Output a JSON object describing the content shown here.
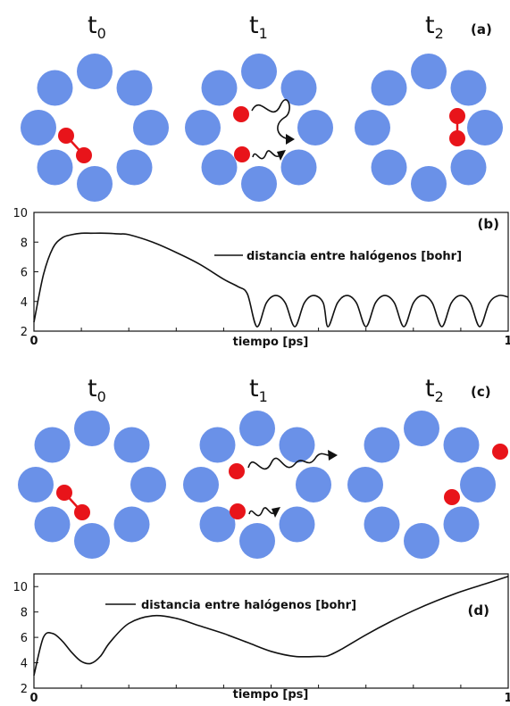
{
  "colors": {
    "solvent": "#6a91e8",
    "halogen": "#e8141a",
    "halogen_bond": "#e8141a",
    "curve": "#111111"
  },
  "top_scheme": {
    "panel_label": "(a)",
    "times": [
      {
        "base": "t",
        "sub": "0"
      },
      {
        "base": "t",
        "sub": "1"
      },
      {
        "base": "t",
        "sub": "2"
      }
    ]
  },
  "bottom_scheme": {
    "panel_label": "(c)",
    "times": [
      {
        "base": "t",
        "sub": "0"
      },
      {
        "base": "t",
        "sub": "1"
      },
      {
        "base": "t",
        "sub": "2"
      }
    ]
  },
  "chart_data": [
    {
      "panel_label": "(b)",
      "type": "line",
      "xlabel": "tiempo [ps]",
      "ylabel": "",
      "xlim": [
        0,
        1
      ],
      "ylim": [
        2,
        10
      ],
      "x_ticks": [
        "0",
        "1"
      ],
      "y_ticks": [
        "2",
        "4",
        "6",
        "8",
        "10"
      ],
      "legend": "top-right",
      "grid": false,
      "series": [
        {
          "name": "distancia entre halógenos [bohr]",
          "x": [
            0,
            0.02,
            0.04,
            0.06,
            0.08,
            0.1,
            0.12,
            0.15,
            0.18,
            0.2,
            0.25,
            0.3,
            0.35,
            0.4,
            0.43,
            0.45,
            0.47,
            0.49,
            0.51,
            0.53,
            0.55,
            0.57,
            0.59,
            0.61,
            0.62,
            0.64,
            0.66,
            0.68,
            0.7,
            0.72,
            0.74,
            0.76,
            0.78,
            0.8,
            0.82,
            0.84,
            0.86,
            0.88,
            0.9,
            0.92,
            0.94,
            0.96,
            0.98,
            1.0
          ],
          "y": [
            2.6,
            5.8,
            7.6,
            8.3,
            8.5,
            8.6,
            8.6,
            8.6,
            8.55,
            8.5,
            8.0,
            7.3,
            6.5,
            5.5,
            5.0,
            4.5,
            2.3,
            3.9,
            4.4,
            3.9,
            2.3,
            3.9,
            4.4,
            3.9,
            2.3,
            3.9,
            4.4,
            3.9,
            2.3,
            3.9,
            4.4,
            3.9,
            2.3,
            3.9,
            4.4,
            3.9,
            2.3,
            3.9,
            4.4,
            3.9,
            2.3,
            3.9,
            4.4,
            4.3
          ]
        }
      ]
    },
    {
      "panel_label": "(d)",
      "type": "line",
      "xlabel": "tiempo [ps]",
      "ylabel": "",
      "xlim": [
        0,
        1
      ],
      "ylim": [
        2,
        11
      ],
      "x_ticks": [
        "0",
        "1"
      ],
      "y_ticks": [
        "2",
        "4",
        "6",
        "8",
        "10"
      ],
      "legend": "top-left",
      "grid": false,
      "series": [
        {
          "name": "distancia entre halógenos [bohr]",
          "x": [
            0,
            0.02,
            0.04,
            0.06,
            0.08,
            0.1,
            0.12,
            0.14,
            0.16,
            0.2,
            0.25,
            0.3,
            0.35,
            0.4,
            0.45,
            0.5,
            0.55,
            0.6,
            0.62,
            0.65,
            0.7,
            0.75,
            0.8,
            0.85,
            0.9,
            0.95,
            1.0
          ],
          "y": [
            3.0,
            6.0,
            6.3,
            5.7,
            4.8,
            4.1,
            3.95,
            4.5,
            5.6,
            7.1,
            7.7,
            7.5,
            6.9,
            6.3,
            5.6,
            4.9,
            4.5,
            4.5,
            4.55,
            5.1,
            6.2,
            7.2,
            8.1,
            8.9,
            9.6,
            10.2,
            10.8
          ]
        }
      ]
    }
  ]
}
